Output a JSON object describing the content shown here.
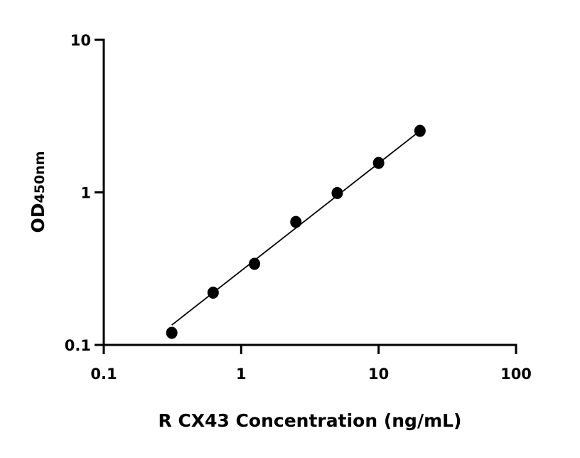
{
  "chart_data": {
    "type": "scatter",
    "xlabel": "R CX43 Concentration (ng/mL)",
    "ylabel_main": "OD",
    "ylabel_sub": "450nm",
    "xscale": "log",
    "yscale": "log",
    "xlim": [
      0.1,
      100
    ],
    "ylim": [
      0.1,
      10
    ],
    "xticks": [
      "0.1",
      "1",
      "10",
      "100"
    ],
    "yticks": [
      "0.1",
      "1",
      "10"
    ],
    "grid": false,
    "points": [
      {
        "x": 0.3125,
        "y": 0.12
      },
      {
        "x": 0.625,
        "y": 0.22
      },
      {
        "x": 1.25,
        "y": 0.34
      },
      {
        "x": 2.5,
        "y": 0.64
      },
      {
        "x": 5,
        "y": 0.99
      },
      {
        "x": 10,
        "y": 1.56
      },
      {
        "x": 20,
        "y": 2.53
      }
    ],
    "fit_line": [
      {
        "x": 0.3125,
        "y": 0.135
      },
      {
        "x": 20,
        "y": 2.53
      }
    ],
    "colors": {
      "points": "#000000",
      "line": "#000000"
    }
  }
}
